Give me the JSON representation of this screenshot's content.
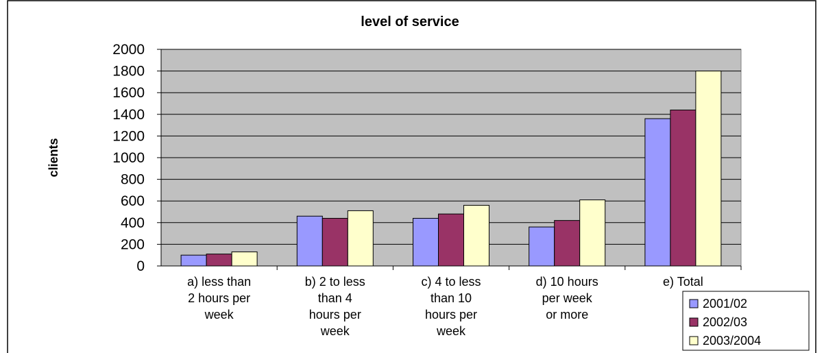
{
  "chart_data": {
    "type": "bar",
    "title": "level of service",
    "y_label": "clients",
    "categories": [
      [
        "a) less than",
        "2 hours per",
        "week"
      ],
      [
        "b) 2 to less",
        "than 4",
        "hours per",
        "week"
      ],
      [
        "c) 4 to less",
        "than 10",
        "hours per",
        "week"
      ],
      [
        "d) 10 hours",
        "per week",
        "or more"
      ],
      [
        "e) Total"
      ]
    ],
    "series": [
      {
        "name": "2001/02",
        "color": "#9999ff",
        "values": [
          100,
          460,
          440,
          360,
          1360
        ]
      },
      {
        "name": "2002/03",
        "color": "#993366",
        "values": [
          110,
          440,
          480,
          420,
          1440
        ]
      },
      {
        "name": "2003/2004",
        "color": "#ffffcc",
        "values": [
          130,
          510,
          560,
          610,
          1800
        ]
      }
    ],
    "ylim": [
      0,
      2000
    ],
    "yticks": [
      0,
      200,
      400,
      600,
      800,
      1000,
      1200,
      1400,
      1600,
      1800,
      2000
    ],
    "grid": true,
    "legend": "bottom-right",
    "plot_background": "#c0c0c0"
  }
}
